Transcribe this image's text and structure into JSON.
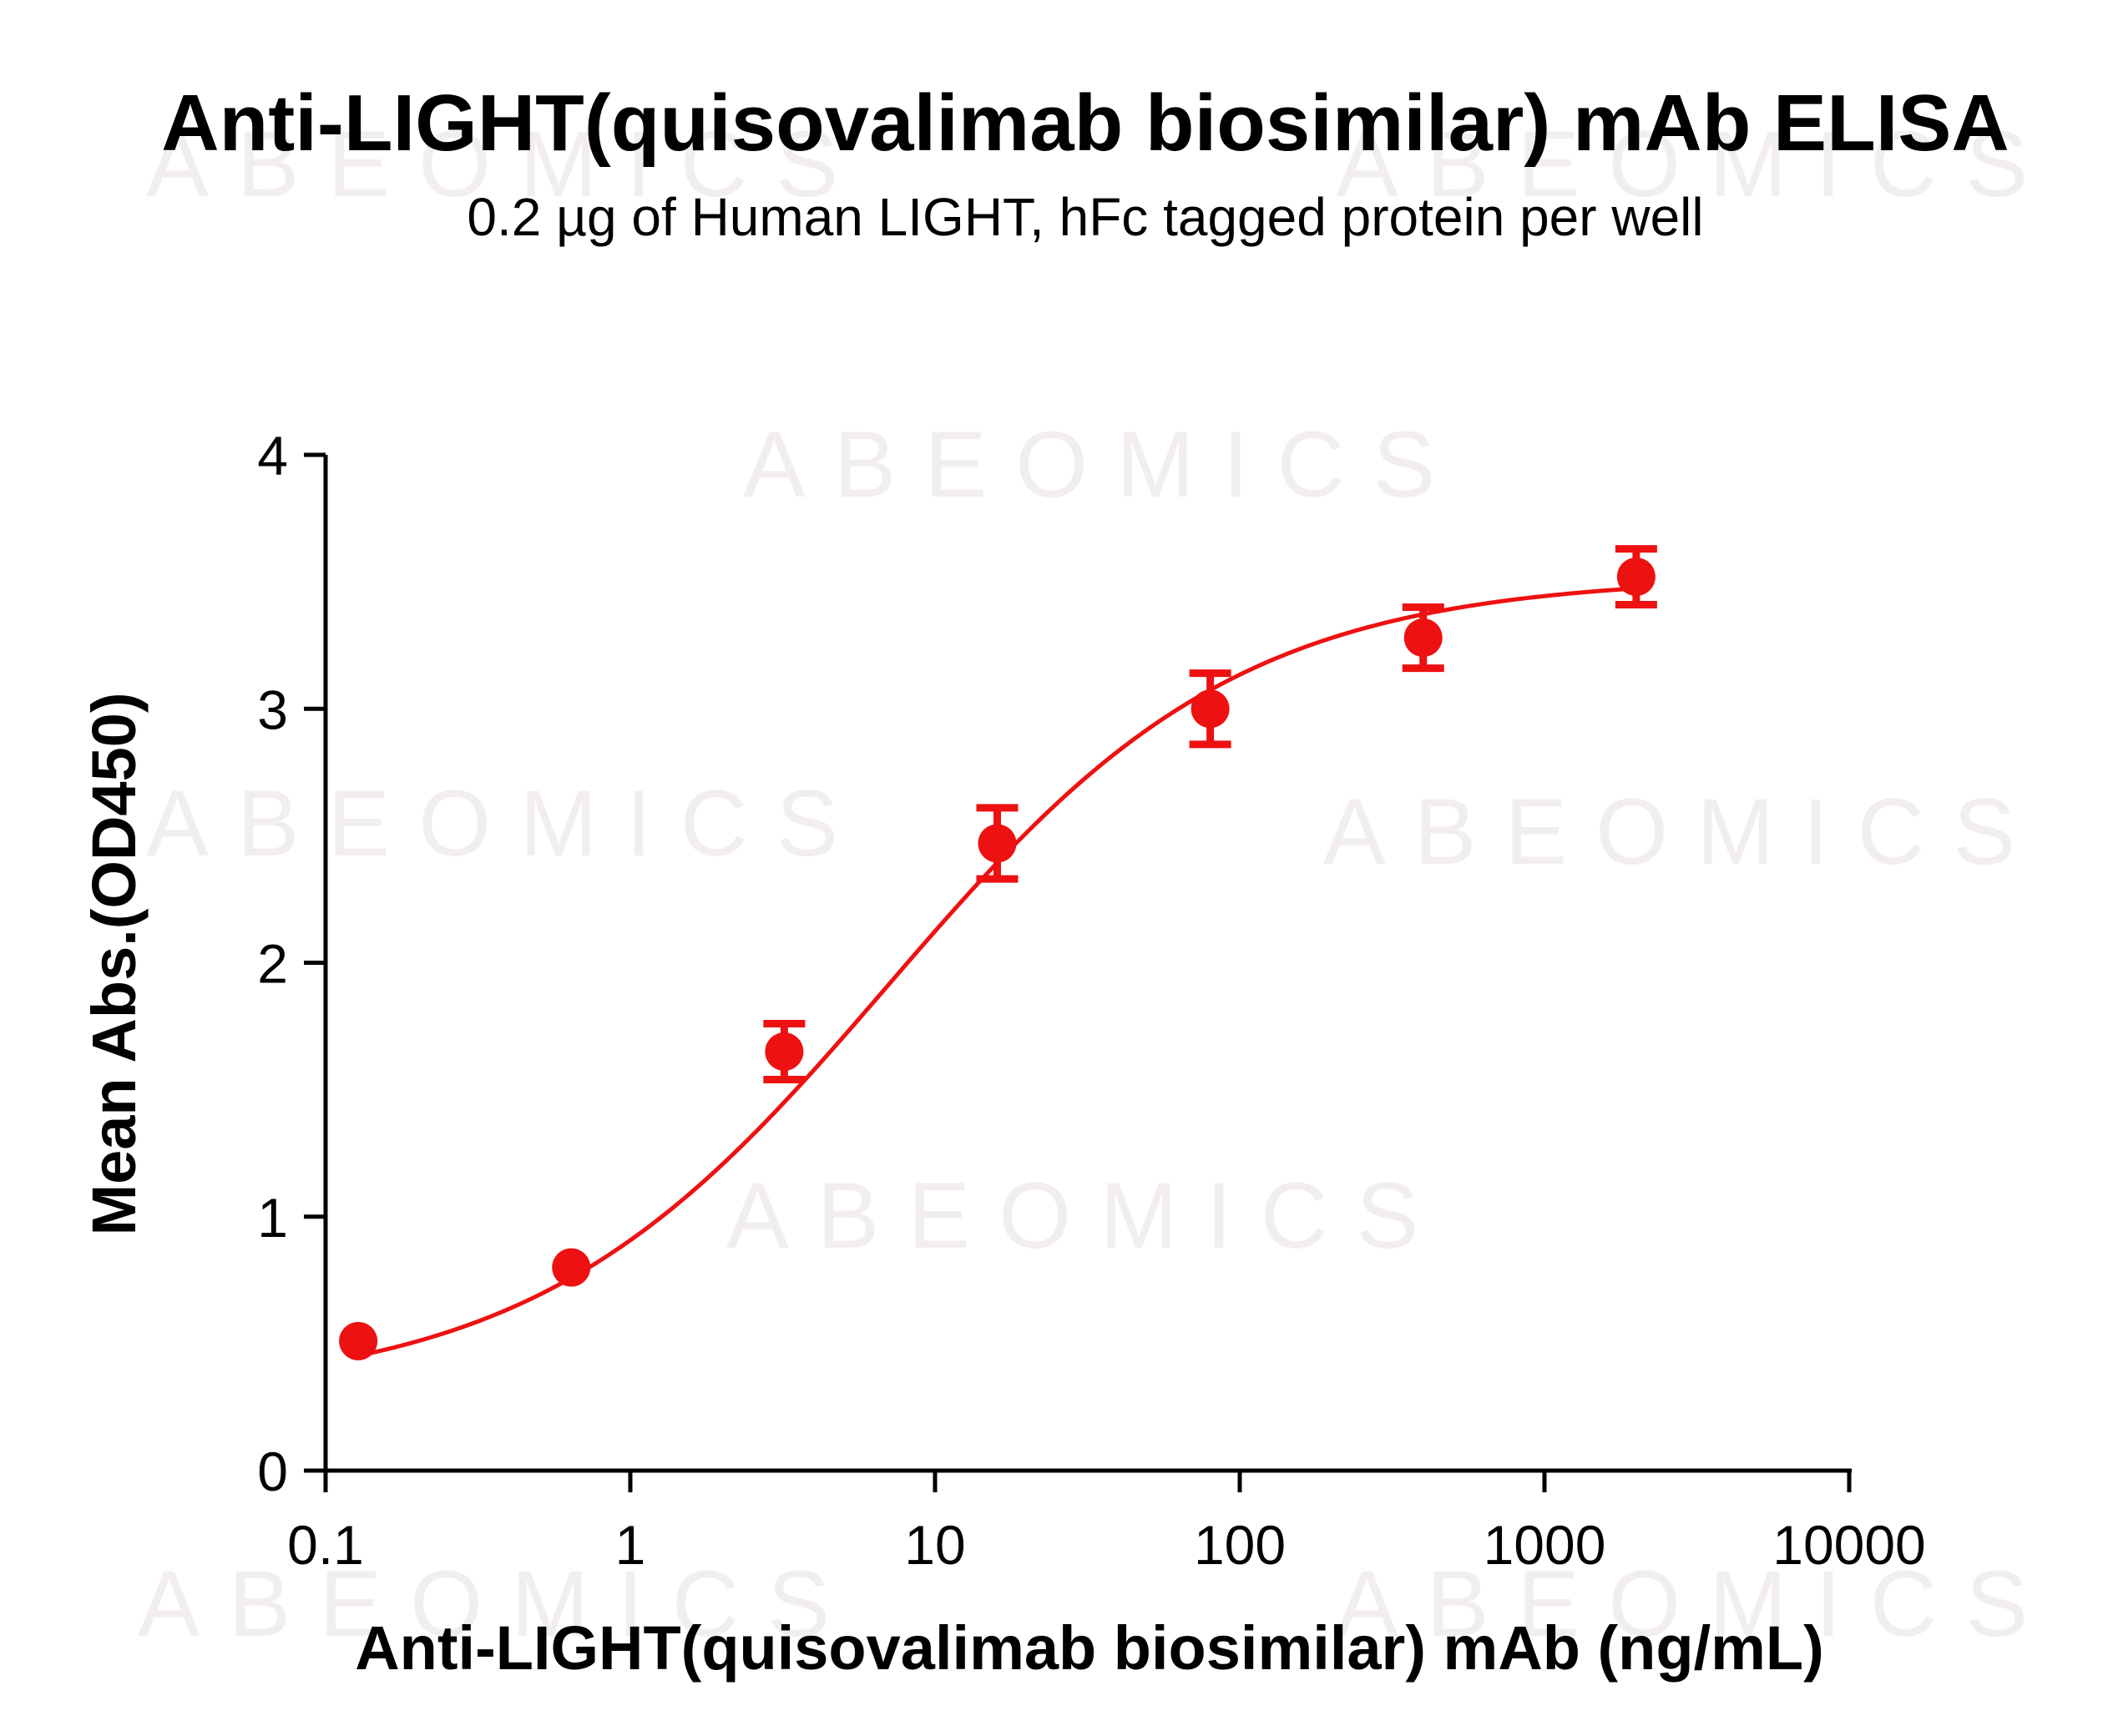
{
  "watermark": "ABEOMICS",
  "chart_data": {
    "type": "scatter",
    "title": "Anti-LIGHT(quisovalimab biosimilar) mAb ELISA",
    "subtitle": "0.2 µg of Human LIGHT, hFc tagged protein per well",
    "xlabel": "Anti-LIGHT(quisovalimab biosimilar) mAb (ng/mL)",
    "ylabel": "Mean Abs.(OD450)",
    "xscale": "log",
    "xlim": [
      0.1,
      10000
    ],
    "ylim": [
      0,
      4
    ],
    "x_ticks": [
      0.1,
      1,
      10,
      100,
      1000,
      10000
    ],
    "x_tick_labels": [
      "0.1",
      "1",
      "10",
      "100",
      "1000",
      "10000"
    ],
    "y_ticks": [
      0,
      1,
      2,
      3,
      4
    ],
    "y_tick_labels": [
      "0",
      "1",
      "2",
      "3",
      "4"
    ],
    "grid": false,
    "color": "#ee1111",
    "series": [
      {
        "x": [
          0.128,
          0.64,
          3.2,
          16,
          80,
          400,
          2000
        ],
        "y": [
          0.51,
          0.8,
          1.65,
          2.47,
          3.0,
          3.28,
          3.52
        ],
        "error": [
          0.0,
          0.0,
          0.11,
          0.14,
          0.14,
          0.12,
          0.11
        ]
      }
    ],
    "fit": {
      "type": "4PL",
      "bottom": 0.3,
      "top": 3.52,
      "ec50": 7.0,
      "hill": 0.75
    }
  }
}
